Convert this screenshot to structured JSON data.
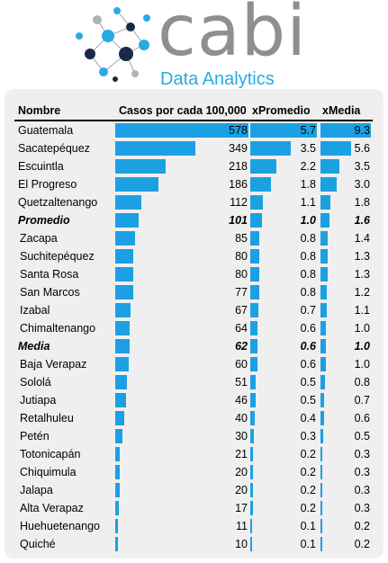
{
  "logo": {
    "word": "cabi",
    "subtitle": "Data Analytics"
  },
  "headers": {
    "name": "Nombre",
    "cases": "Casos por cada 100,000",
    "xprom": "xPromedio",
    "xmedia": "xMedia"
  },
  "colors": {
    "bar": "#1ba1e2",
    "logo_gray": "#8d8f92",
    "logo_blue": "#29abe2",
    "panel": "#efefef"
  },
  "chart_data": {
    "type": "table",
    "columns": [
      "Nombre",
      "Casos por cada 100,000",
      "xPromedio",
      "xMedia"
    ],
    "rows": [
      {
        "name": "Guatemala",
        "cases": 578,
        "xprom": "5.7",
        "xmedia": "9.3",
        "emph": false
      },
      {
        "name": "Sacatepéquez",
        "cases": 349,
        "xprom": "3.5",
        "xmedia": "5.6",
        "emph": false
      },
      {
        "name": "Escuintla",
        "cases": 218,
        "xprom": "2.2",
        "xmedia": "3.5",
        "emph": false
      },
      {
        "name": "El Progreso",
        "cases": 186,
        "xprom": "1.8",
        "xmedia": "3.0",
        "emph": false
      },
      {
        "name": "Quetzaltenango",
        "cases": 112,
        "xprom": "1.1",
        "xmedia": "1.8",
        "emph": false
      },
      {
        "name": "Promedio",
        "cases": 101,
        "xprom": "1.0",
        "xmedia": "1.6",
        "emph": true
      },
      {
        "name": "Zacapa",
        "cases": 85,
        "xprom": "0.8",
        "xmedia": "1.4",
        "emph": false
      },
      {
        "name": "Suchitepéquez",
        "cases": 80,
        "xprom": "0.8",
        "xmedia": "1.3",
        "emph": false
      },
      {
        "name": "Santa Rosa",
        "cases": 80,
        "xprom": "0.8",
        "xmedia": "1.3",
        "emph": false
      },
      {
        "name": "San Marcos",
        "cases": 77,
        "xprom": "0.8",
        "xmedia": "1.2",
        "emph": false
      },
      {
        "name": "Izabal",
        "cases": 67,
        "xprom": "0.7",
        "xmedia": "1.1",
        "emph": false
      },
      {
        "name": "Chimaltenango",
        "cases": 64,
        "xprom": "0.6",
        "xmedia": "1.0",
        "emph": false
      },
      {
        "name": "Media",
        "cases": 62,
        "xprom": "0.6",
        "xmedia": "1.0",
        "emph": true
      },
      {
        "name": "Baja Verapaz",
        "cases": 60,
        "xprom": "0.6",
        "xmedia": "1.0",
        "emph": false
      },
      {
        "name": "Sololá",
        "cases": 51,
        "xprom": "0.5",
        "xmedia": "0.8",
        "emph": false
      },
      {
        "name": "Jutiapa",
        "cases": 46,
        "xprom": "0.5",
        "xmedia": "0.7",
        "emph": false
      },
      {
        "name": "Retalhuleu",
        "cases": 40,
        "xprom": "0.4",
        "xmedia": "0.6",
        "emph": false
      },
      {
        "name": "Petén",
        "cases": 30,
        "xprom": "0.3",
        "xmedia": "0.5",
        "emph": false
      },
      {
        "name": "Totonicapán",
        "cases": 21,
        "xprom": "0.2",
        "xmedia": "0.3",
        "emph": false
      },
      {
        "name": "Chiquimula",
        "cases": 20,
        "xprom": "0.2",
        "xmedia": "0.3",
        "emph": false
      },
      {
        "name": "Jalapa",
        "cases": 20,
        "xprom": "0.2",
        "xmedia": "0.3",
        "emph": false
      },
      {
        "name": "Alta Verapaz",
        "cases": 17,
        "xprom": "0.2",
        "xmedia": "0.3",
        "emph": false
      },
      {
        "name": "Huehuetenango",
        "cases": 11,
        "xprom": "0.1",
        "xmedia": "0.2",
        "emph": false
      },
      {
        "name": "Quiché",
        "cases": 10,
        "xprom": "0.1",
        "xmedia": "0.2",
        "emph": false
      }
    ]
  }
}
